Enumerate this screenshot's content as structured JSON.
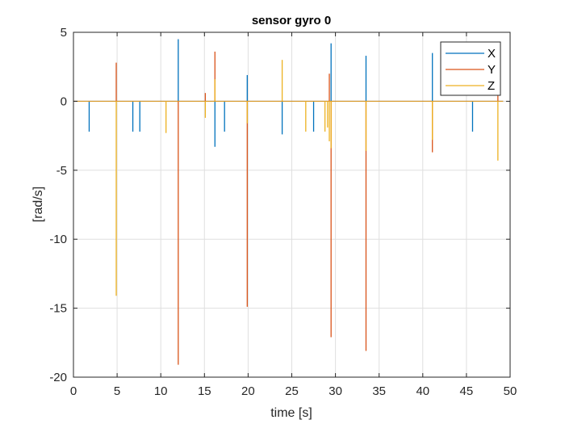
{
  "chart_data": {
    "type": "line",
    "title": "sensor gyro 0",
    "xlabel": "time [s]",
    "ylabel": "[rad/s]",
    "xlim": [
      0,
      50
    ],
    "ylim": [
      -20,
      5
    ],
    "xticks": [
      0,
      5,
      10,
      15,
      20,
      25,
      30,
      35,
      40,
      45,
      50
    ],
    "yticks": [
      5,
      0,
      -5,
      -10,
      -15,
      -20
    ],
    "grid": true,
    "legend_position": "northeast",
    "series": [
      {
        "name": "X",
        "color": "#0072BD",
        "spikes": [
          {
            "t": 1.8,
            "v": -2.2
          },
          {
            "t": 6.8,
            "v": -2.2
          },
          {
            "t": 7.6,
            "v": -2.2
          },
          {
            "t": 12.0,
            "v": 4.5
          },
          {
            "t": 16.2,
            "v": -3.3
          },
          {
            "t": 17.3,
            "v": -2.2
          },
          {
            "t": 19.9,
            "v": 1.9
          },
          {
            "t": 23.9,
            "v": -2.4
          },
          {
            "t": 27.5,
            "v": -2.2
          },
          {
            "t": 29.5,
            "v": 4.2
          },
          {
            "t": 33.5,
            "v": 3.3
          },
          {
            "t": 41.1,
            "v": 3.5
          },
          {
            "t": 45.7,
            "v": -2.2
          }
        ]
      },
      {
        "name": "Y",
        "color": "#D95319",
        "spikes": [
          {
            "t": 4.9,
            "v": 2.8
          },
          {
            "t": 12.0,
            "v": -19.1
          },
          {
            "t": 15.1,
            "v": 0.6
          },
          {
            "t": 16.2,
            "v": 3.6
          },
          {
            "t": 19.9,
            "v": -14.9
          },
          {
            "t": 29.3,
            "v": 2.0
          },
          {
            "t": 29.5,
            "v": -17.1
          },
          {
            "t": 33.5,
            "v": -18.1
          },
          {
            "t": 41.1,
            "v": -3.7
          },
          {
            "t": 48.6,
            "v": 0.4
          }
        ]
      },
      {
        "name": "Z",
        "color": "#EDB120",
        "spikes": [
          {
            "t": 4.9,
            "v": -14.1
          },
          {
            "t": 10.6,
            "v": -2.3
          },
          {
            "t": 15.1,
            "v": -1.2
          },
          {
            "t": 16.2,
            "v": 1.6
          },
          {
            "t": 19.9,
            "v": -1.6
          },
          {
            "t": 23.9,
            "v": 3.0
          },
          {
            "t": 26.6,
            "v": -2.2
          },
          {
            "t": 28.8,
            "v": -2.2
          },
          {
            "t": 29.1,
            "v": -1.9
          },
          {
            "t": 29.3,
            "v": -2.9
          },
          {
            "t": 29.5,
            "v": -3.4
          },
          {
            "t": 33.5,
            "v": -3.6
          },
          {
            "t": 41.1,
            "v": -2.8
          },
          {
            "t": 48.6,
            "v": -4.3
          }
        ]
      }
    ]
  },
  "legend": {
    "items": [
      {
        "label": "X",
        "color": "#0072BD"
      },
      {
        "label": "Y",
        "color": "#D95319"
      },
      {
        "label": "Z",
        "color": "#EDB120"
      }
    ]
  }
}
